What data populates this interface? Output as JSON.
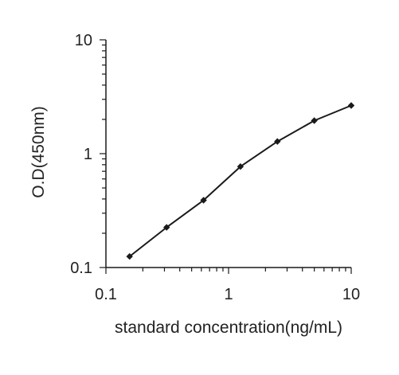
{
  "chart_data": {
    "type": "line",
    "title": "",
    "xlabel": "standard concentration(ng/mL)",
    "ylabel": "O.D(450nm)",
    "x_scale": "log",
    "y_scale": "log",
    "xlim": [
      0.1,
      10
    ],
    "ylim": [
      0.1,
      10
    ],
    "x_tick_labels": [
      "0.1",
      "1",
      "10"
    ],
    "y_tick_labels": [
      "0.1",
      "1",
      "10"
    ],
    "grid": false,
    "legend": "none",
    "series": [
      {
        "x": [
          0.156,
          0.3125,
          0.625,
          1.25,
          2.5,
          5,
          10
        ],
        "y": [
          0.125,
          0.225,
          0.39,
          0.77,
          1.28,
          1.95,
          2.65
        ]
      }
    ],
    "colors": {
      "line": "#1a1a1a",
      "marker": "#1a1a1a",
      "axis": "#1a1a1a"
    }
  }
}
